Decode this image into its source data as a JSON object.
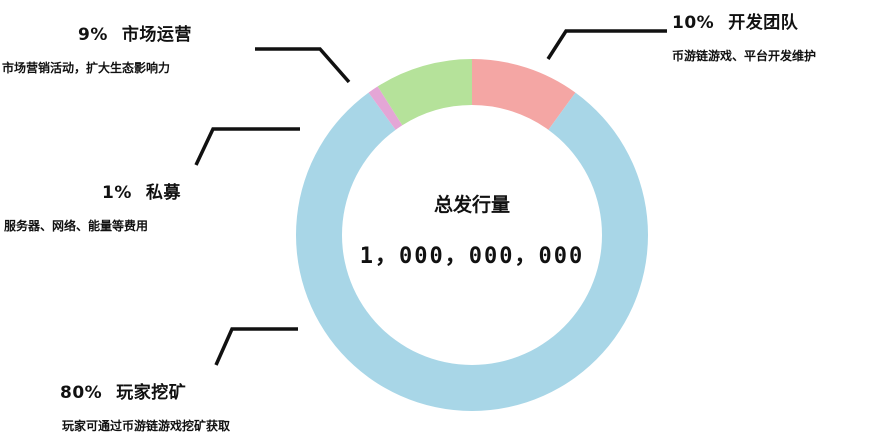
{
  "chart_data": {
    "type": "pie",
    "donut": true,
    "center": {
      "title": "总发行量",
      "value": "1，000，000，000"
    },
    "slices": [
      {
        "key": "team",
        "percent_label": "10%",
        "value": 10,
        "name": "开发团队",
        "description": "币游链游戏、平台开发维护",
        "color": "#f4a6a4"
      },
      {
        "key": "mining",
        "percent_label": "80%",
        "value": 80,
        "name": "玩家挖矿",
        "description": "玩家可通过币游链游戏挖矿获取",
        "color": "#a8d6e7"
      },
      {
        "key": "private",
        "percent_label": "1%",
        "value": 1,
        "name": "私募",
        "description": "服务器、网络、能量等费用",
        "color": "#e4a6d6"
      },
      {
        "key": "market",
        "percent_label": "9%",
        "value": 9,
        "name": "市场运营",
        "description": "市场营销活动，扩大生态影响力",
        "color": "#b5e29a"
      }
    ]
  }
}
